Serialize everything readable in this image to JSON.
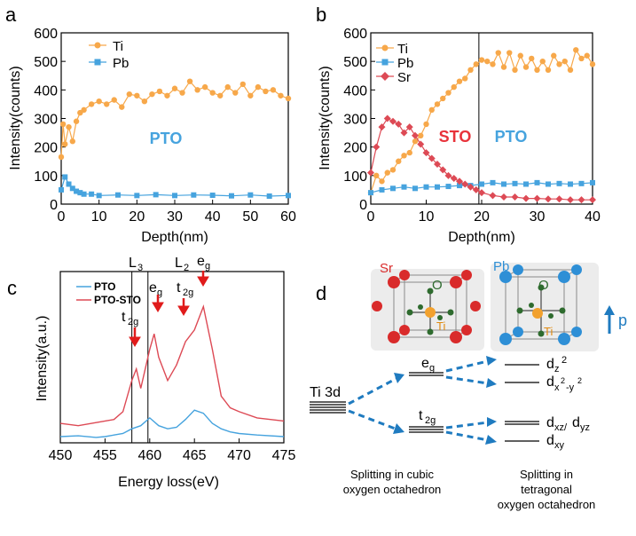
{
  "colors": {
    "ti": "#F7A84A",
    "pb": "#46A3DE",
    "sr": "#DD4A55",
    "pto_label": "#46A3DE",
    "sto_label": "#E8323A",
    "arrow_red": "#E01B1B",
    "arrow_blue": "#1F7BC0"
  },
  "panels": {
    "a": {
      "letter": "a",
      "annotation": "PTO"
    },
    "b": {
      "letter": "b",
      "annotation_sto": "STO",
      "annotation_pto": "PTO"
    },
    "c": {
      "letter": "c",
      "peak_labels": {
        "L3": "L",
        "L3_sub": "3",
        "L2": "L",
        "L2_sub": "2",
        "eg": "e",
        "eg_sub": "g",
        "t2g": "t",
        "t2g_sub": "2g"
      }
    },
    "d": {
      "letter": "d",
      "ti3d": "Ti 3d",
      "eg": "e",
      "eg_sub": "g",
      "t2g": "t",
      "t2g_sub": "2g",
      "dz2": "d",
      "dz2_sub": "z",
      "dz2_sup": "2",
      "dx2y2": "d",
      "dx2y2_sub": "x",
      "dx2y2_sup": "2",
      "dx2y2_sub2": "-y",
      "dx2y2_sup2": "2",
      "dxz": "d",
      "dxz_sub": "xz/",
      "dyz": "d",
      "dyz_sub": "yz",
      "dxy": "d",
      "dxy_sub": "xy",
      "cubic_caption": [
        "Splitting in cubic",
        "oxygen octahedron"
      ],
      "tetra_caption": [
        "Splitting in",
        "tetragonal",
        "oxygen octahedron"
      ],
      "atom_sr": "Sr",
      "atom_o1": "O",
      "atom_ti1": "Ti",
      "atom_pb": "Pb",
      "atom_o2": "O",
      "atom_ti2": "Ti",
      "p_label": "p"
    }
  },
  "chart_data": [
    {
      "id": "a",
      "type": "line",
      "xlabel": "Depth(nm)",
      "ylabel": "Intensity(counts)",
      "xlim": [
        0,
        60
      ],
      "ylim": [
        0,
        600
      ],
      "xticks": [
        "0",
        "10",
        "20",
        "30",
        "40",
        "50",
        "60"
      ],
      "yticks": [
        "0",
        "100",
        "200",
        "300",
        "400",
        "500",
        "600"
      ],
      "legend": {
        "placement": "top-left",
        "entries": [
          "Ti",
          "Pb"
        ]
      },
      "series": [
        {
          "name": "Ti",
          "marker": "circle",
          "x": [
            0,
            0.5,
            1,
            2,
            3,
            4,
            5,
            6,
            8,
            10,
            12,
            14,
            16,
            18,
            20,
            22,
            24,
            26,
            28,
            30,
            32,
            34,
            36,
            38,
            40,
            42,
            44,
            46,
            48,
            50,
            52,
            54,
            56,
            58,
            60
          ],
          "y": [
            165,
            280,
            210,
            270,
            220,
            290,
            320,
            330,
            350,
            360,
            350,
            365,
            340,
            385,
            380,
            360,
            385,
            395,
            380,
            405,
            390,
            430,
            400,
            410,
            390,
            380,
            410,
            390,
            420,
            380,
            410,
            395,
            400,
            380,
            370
          ]
        },
        {
          "name": "Pb",
          "marker": "square",
          "x": [
            0,
            1,
            2,
            3,
            4,
            5,
            6,
            8,
            10,
            15,
            20,
            25,
            30,
            35,
            40,
            45,
            50,
            55,
            60
          ],
          "y": [
            50,
            95,
            70,
            55,
            45,
            40,
            35,
            35,
            30,
            32,
            30,
            33,
            30,
            32,
            31,
            29,
            32,
            28,
            30
          ]
        }
      ]
    },
    {
      "id": "b",
      "type": "line",
      "xlabel": "Depth(nm)",
      "ylabel": "Intensity(counts)",
      "xlim": [
        0,
        40
      ],
      "ylim": [
        0,
        600
      ],
      "xticks": [
        "0",
        "10",
        "20",
        "30",
        "40"
      ],
      "yticks": [
        "0",
        "100",
        "200",
        "300",
        "400",
        "500",
        "600"
      ],
      "vline_x": 19.5,
      "legend": {
        "placement": "top-left",
        "entries": [
          "Ti",
          "Pb",
          "Sr"
        ]
      },
      "series": [
        {
          "name": "Ti",
          "marker": "circle",
          "x": [
            0,
            1,
            2,
            3,
            4,
            5,
            6,
            7,
            8,
            9,
            10,
            11,
            12,
            13,
            14,
            15,
            16,
            17,
            18,
            19,
            20,
            21,
            22,
            23,
            24,
            25,
            26,
            27,
            28,
            29,
            30,
            31,
            32,
            33,
            34,
            35,
            36,
            37,
            38,
            39,
            40
          ],
          "y": [
            40,
            100,
            80,
            110,
            120,
            150,
            170,
            180,
            220,
            240,
            280,
            330,
            350,
            370,
            390,
            410,
            430,
            440,
            470,
            490,
            505,
            500,
            490,
            530,
            480,
            530,
            470,
            520,
            480,
            510,
            470,
            500,
            470,
            520,
            490,
            500,
            470,
            540,
            510,
            520,
            490
          ]
        },
        {
          "name": "Pb",
          "marker": "square",
          "x": [
            0,
            2,
            4,
            6,
            8,
            10,
            12,
            14,
            16,
            18,
            20,
            22,
            24,
            26,
            28,
            30,
            32,
            34,
            36,
            38,
            40
          ],
          "y": [
            40,
            50,
            55,
            60,
            55,
            60,
            60,
            62,
            65,
            65,
            70,
            75,
            70,
            72,
            70,
            75,
            70,
            72,
            70,
            72,
            75
          ]
        },
        {
          "name": "Sr",
          "marker": "diamond",
          "x": [
            0,
            1,
            2,
            3,
            4,
            5,
            6,
            7,
            8,
            9,
            10,
            11,
            12,
            13,
            14,
            15,
            16,
            17,
            18,
            19,
            20,
            22,
            24,
            26,
            28,
            30,
            32,
            34,
            36,
            38,
            40
          ],
          "y": [
            110,
            200,
            270,
            300,
            290,
            280,
            250,
            270,
            240,
            210,
            180,
            160,
            140,
            120,
            100,
            90,
            80,
            70,
            60,
            50,
            40,
            30,
            25,
            25,
            20,
            20,
            18,
            18,
            15,
            15,
            15
          ]
        }
      ]
    },
    {
      "id": "c",
      "type": "line",
      "xlabel": "Energy loss(eV)",
      "ylabel": "Intensity(a.u.)",
      "xlim": [
        450,
        475
      ],
      "xticks": [
        "450",
        "455",
        "460",
        "465",
        "470",
        "475"
      ],
      "vlines_x": [
        458,
        459.8
      ],
      "legend": {
        "placement": "top-left",
        "entries": [
          "PTO",
          "PTO-STO"
        ]
      },
      "series": [
        {
          "name": "PTO",
          "x": [
            450,
            452,
            454,
            455,
            456,
            457,
            458,
            459,
            460,
            461,
            462,
            463,
            464,
            465,
            466,
            467,
            468,
            469,
            470,
            472,
            475
          ],
          "y": [
            0.08,
            0.09,
            0.07,
            0.08,
            0.1,
            0.12,
            0.18,
            0.22,
            0.32,
            0.22,
            0.18,
            0.2,
            0.3,
            0.42,
            0.38,
            0.25,
            0.18,
            0.14,
            0.12,
            0.1,
            0.08
          ]
        },
        {
          "name": "PTO-STO",
          "x": [
            450,
            452,
            454,
            455,
            456,
            457,
            458,
            458.5,
            459,
            460,
            460.5,
            461,
            462,
            463,
            464,
            465,
            466,
            467,
            468,
            469,
            470,
            472,
            475
          ],
          "y": [
            0.25,
            0.22,
            0.26,
            0.28,
            0.3,
            0.4,
            0.8,
            0.95,
            0.7,
            1.2,
            1.4,
            1.1,
            0.8,
            1.0,
            1.3,
            1.45,
            1.75,
            1.2,
            0.6,
            0.45,
            0.4,
            0.32,
            0.28
          ]
        }
      ]
    }
  ]
}
